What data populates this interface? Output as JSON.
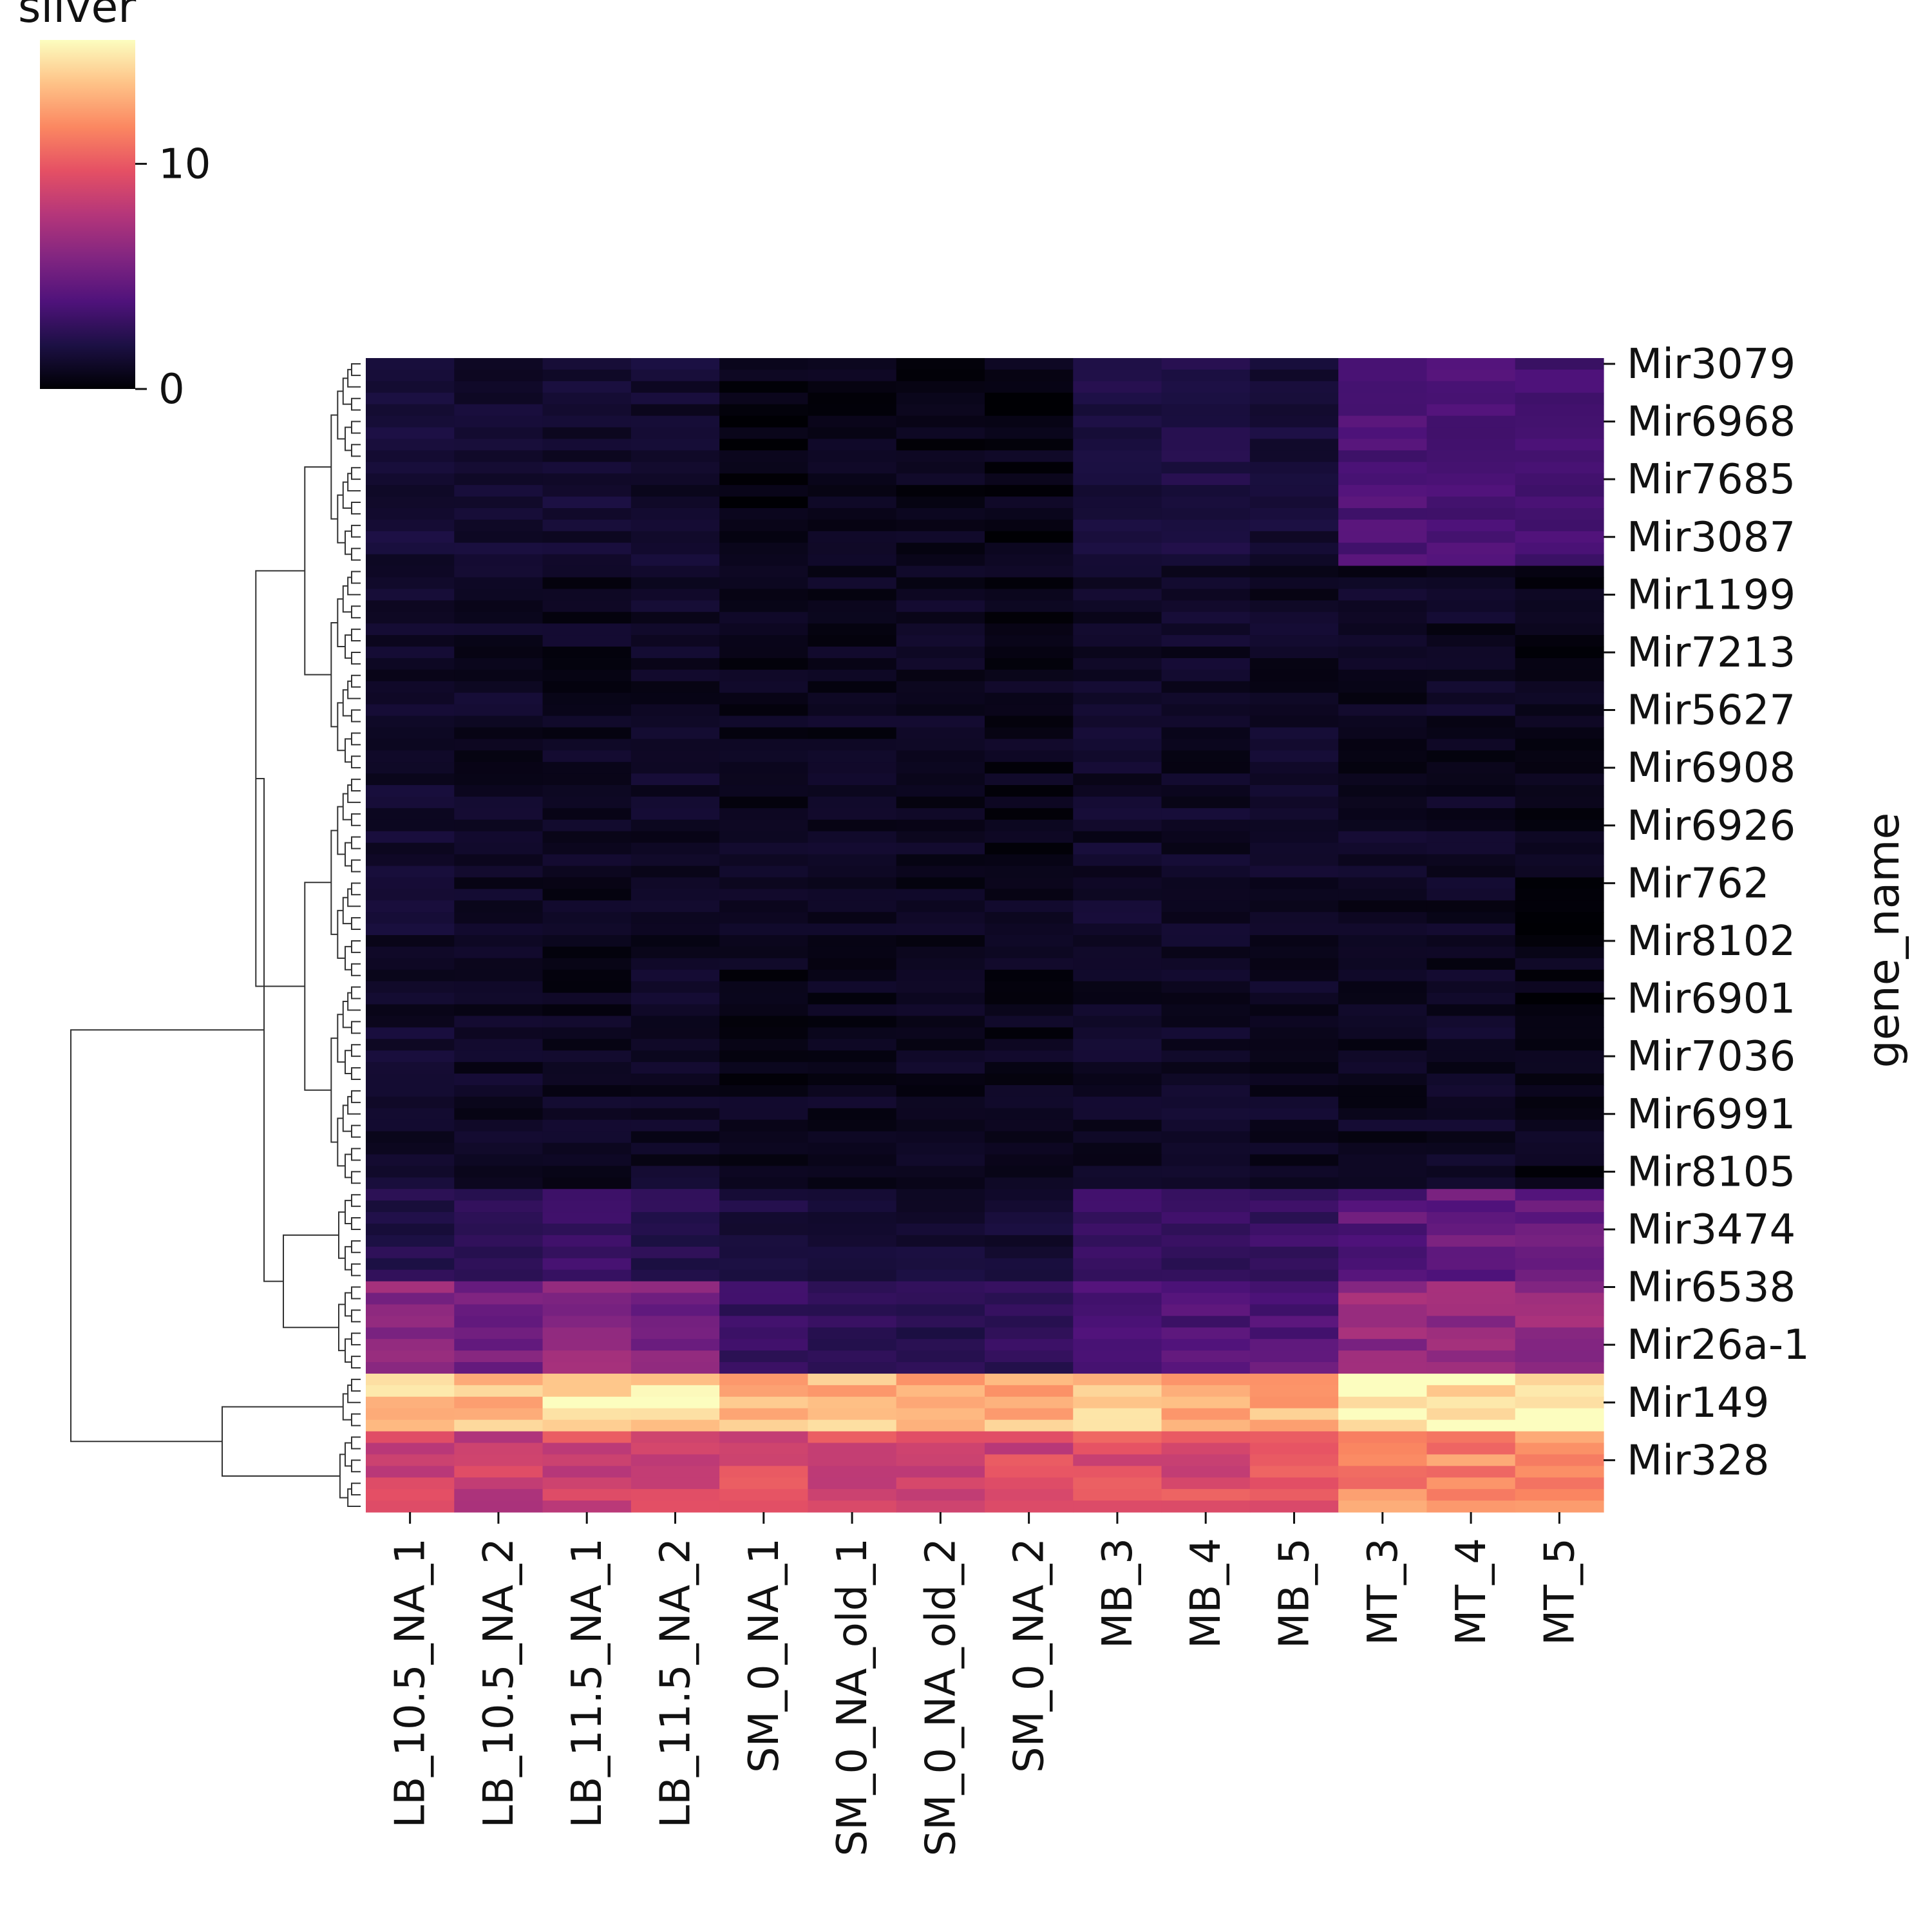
{
  "chart_data": {
    "type": "heatmap",
    "colormap": "magma",
    "colorbar": {
      "label": "silver",
      "min": 0,
      "max": 15.5,
      "ticks": [
        0,
        10
      ],
      "tick_labels": [
        "0",
        "10"
      ]
    },
    "ylabel": "gene_name",
    "xlabel": "",
    "columns": [
      "LB_10.5_NA_1",
      "LB_10.5_NA_2",
      "LB_11.5_NA_1",
      "LB_11.5_NA_2",
      "SM_0_NA_1",
      "SM_0_NA_old_1",
      "SM_0_NA_old_2",
      "SM_0_NA_2",
      "MB_3",
      "MB_4",
      "MB_5",
      "MT_3",
      "MT_4",
      "MT_5"
    ],
    "row_count": 100,
    "labeled_rows": [
      {
        "row": 0,
        "label": "Mir3079"
      },
      {
        "row": 5,
        "label": "Mir6968"
      },
      {
        "row": 10,
        "label": "Mir7685"
      },
      {
        "row": 15,
        "label": "Mir3087"
      },
      {
        "row": 20,
        "label": "Mir1199"
      },
      {
        "row": 25,
        "label": "Mir7213"
      },
      {
        "row": 30,
        "label": "Mir5627"
      },
      {
        "row": 35,
        "label": "Mir6908"
      },
      {
        "row": 40,
        "label": "Mir6926"
      },
      {
        "row": 45,
        "label": "Mir762"
      },
      {
        "row": 50,
        "label": "Mir8102"
      },
      {
        "row": 55,
        "label": "Mir6901"
      },
      {
        "row": 60,
        "label": "Mir7036"
      },
      {
        "row": 65,
        "label": "Mir6991"
      },
      {
        "row": 70,
        "label": "Mir8105"
      },
      {
        "row": 75,
        "label": "Mir3474"
      },
      {
        "row": 80,
        "label": "Mir6538"
      },
      {
        "row": 85,
        "label": "Mir26a-1"
      },
      {
        "row": 90,
        "label": "Mir149"
      },
      {
        "row": 95,
        "label": "Mir328"
      }
    ],
    "row_groups": [
      {
        "rows": [
          0,
          17
        ],
        "values": [
          1.5,
          1.2,
          1.4,
          1.3,
          0.5,
          0.6,
          0.6,
          0.5,
          1.8,
          2.0,
          1.4,
          3.8,
          3.7,
          3.4
        ]
      },
      {
        "rows": [
          18,
          71
        ],
        "values": [
          1.2,
          1.0,
          0.8,
          1.0,
          0.7,
          0.8,
          0.8,
          0.7,
          1.1,
          1.0,
          1.0,
          0.9,
          0.9,
          0.6
        ]
      },
      {
        "rows": [
          72,
          79
        ],
        "values": [
          2.2,
          2.4,
          3.1,
          2.4,
          1.8,
          1.7,
          1.4,
          1.3,
          2.9,
          2.9,
          3.0,
          4.3,
          4.6,
          4.4
        ]
      },
      {
        "rows": [
          80,
          87
        ],
        "values": [
          6.2,
          5.7,
          6.4,
          5.5,
          2.9,
          2.8,
          2.3,
          2.6,
          3.9,
          4.1,
          4.3,
          6.4,
          6.2,
          6.4
        ]
      },
      {
        "rows": [
          88,
          92
        ],
        "values": [
          13.8,
          13.6,
          14.9,
          14.6,
          13.4,
          13.4,
          12.9,
          13.2,
          13.8,
          13.3,
          13.2,
          15.2,
          14.9,
          14.9
        ]
      },
      {
        "rows": [
          93,
          99
        ],
        "values": [
          8.9,
          8.6,
          8.9,
          9.1,
          8.9,
          8.9,
          8.3,
          8.9,
          9.3,
          9.4,
          9.6,
          11.8,
          11.5,
          11.6
        ]
      }
    ]
  }
}
